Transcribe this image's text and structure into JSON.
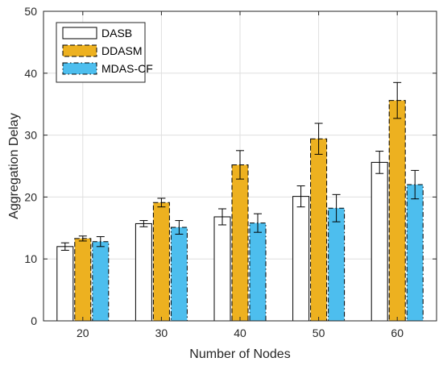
{
  "chart_data": {
    "type": "bar",
    "title": "",
    "xlabel": "Number of Nodes",
    "ylabel": "Aggregation Delay",
    "categories": [
      "20",
      "30",
      "40",
      "50",
      "60"
    ],
    "ylim": [
      0,
      50
    ],
    "yticks": [
      0,
      10,
      20,
      30,
      40,
      50
    ],
    "grid": true,
    "legend_position": "top-left",
    "series": [
      {
        "name": "DASB",
        "values": [
          12.0,
          15.7,
          16.8,
          20.1,
          25.6
        ],
        "errors": [
          0.6,
          0.5,
          1.3,
          1.7,
          1.8
        ],
        "color": "#ffffff",
        "line_style": "solid"
      },
      {
        "name": "DDASM",
        "values": [
          13.3,
          19.1,
          25.2,
          29.4,
          35.6
        ],
        "errors": [
          0.4,
          0.7,
          2.3,
          2.5,
          2.9
        ],
        "color": "#edb120",
        "line_style": "dashed"
      },
      {
        "name": "MDAS-CF",
        "values": [
          12.8,
          15.1,
          15.8,
          18.2,
          22.0
        ],
        "errors": [
          0.8,
          1.1,
          1.5,
          2.2,
          2.3
        ],
        "color": "#4dbeee",
        "line_style": "dash-dot"
      }
    ]
  }
}
